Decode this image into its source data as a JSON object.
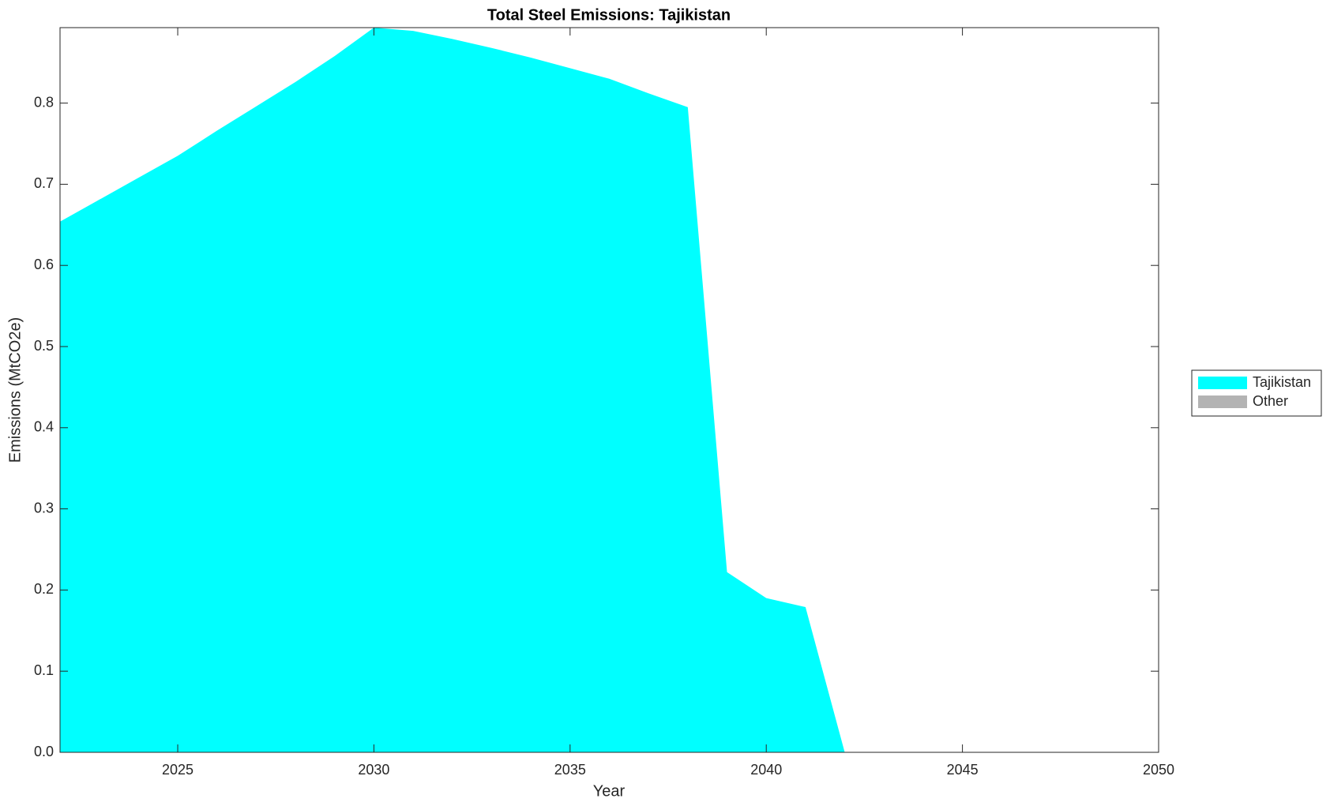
{
  "chart_data": {
    "type": "stacked_area",
    "title": "Total Steel Emissions: Tajikistan",
    "xlabel": "Year",
    "ylabel": "Emissions (MtCO2e)",
    "x": [
      2022,
      2023,
      2024,
      2025,
      2026,
      2027,
      2028,
      2029,
      2030,
      2031,
      2032,
      2033,
      2034,
      2035,
      2036,
      2037,
      2038,
      2039,
      2040,
      2041,
      2042,
      2043,
      2044,
      2045,
      2046,
      2047,
      2048,
      2049,
      2050
    ],
    "series": [
      {
        "name": "Tajikistan",
        "color": "#00ffff",
        "values": [
          0.654,
          0.681,
          0.708,
          0.735,
          0.766,
          0.796,
          0.826,
          0.858,
          0.893,
          0.889,
          0.879,
          0.868,
          0.856,
          0.843,
          0.83,
          0.812,
          0.795,
          0.222,
          0.19,
          0.179,
          0,
          0,
          0,
          0,
          0,
          0,
          0,
          0,
          0
        ]
      },
      {
        "name": "Other",
        "color": "#b3b3b3",
        "values": [
          0,
          0,
          0,
          0,
          0,
          0,
          0,
          0,
          0,
          0,
          0,
          0,
          0,
          0,
          0,
          0,
          0,
          0,
          0,
          0,
          0,
          0,
          0,
          0,
          0,
          0,
          0,
          0,
          0
        ]
      }
    ],
    "xlim": [
      2022,
      2050
    ],
    "xticks": [
      2025,
      2030,
      2035,
      2040,
      2045,
      2050
    ],
    "ylim": [
      0,
      0.893
    ],
    "yticks": [
      {
        "value": 0,
        "label": "0.0"
      },
      0.1,
      0.2,
      0.3,
      0.4,
      0.5,
      0.6,
      0.7,
      0.8
    ],
    "legend": "right",
    "grid": false
  }
}
